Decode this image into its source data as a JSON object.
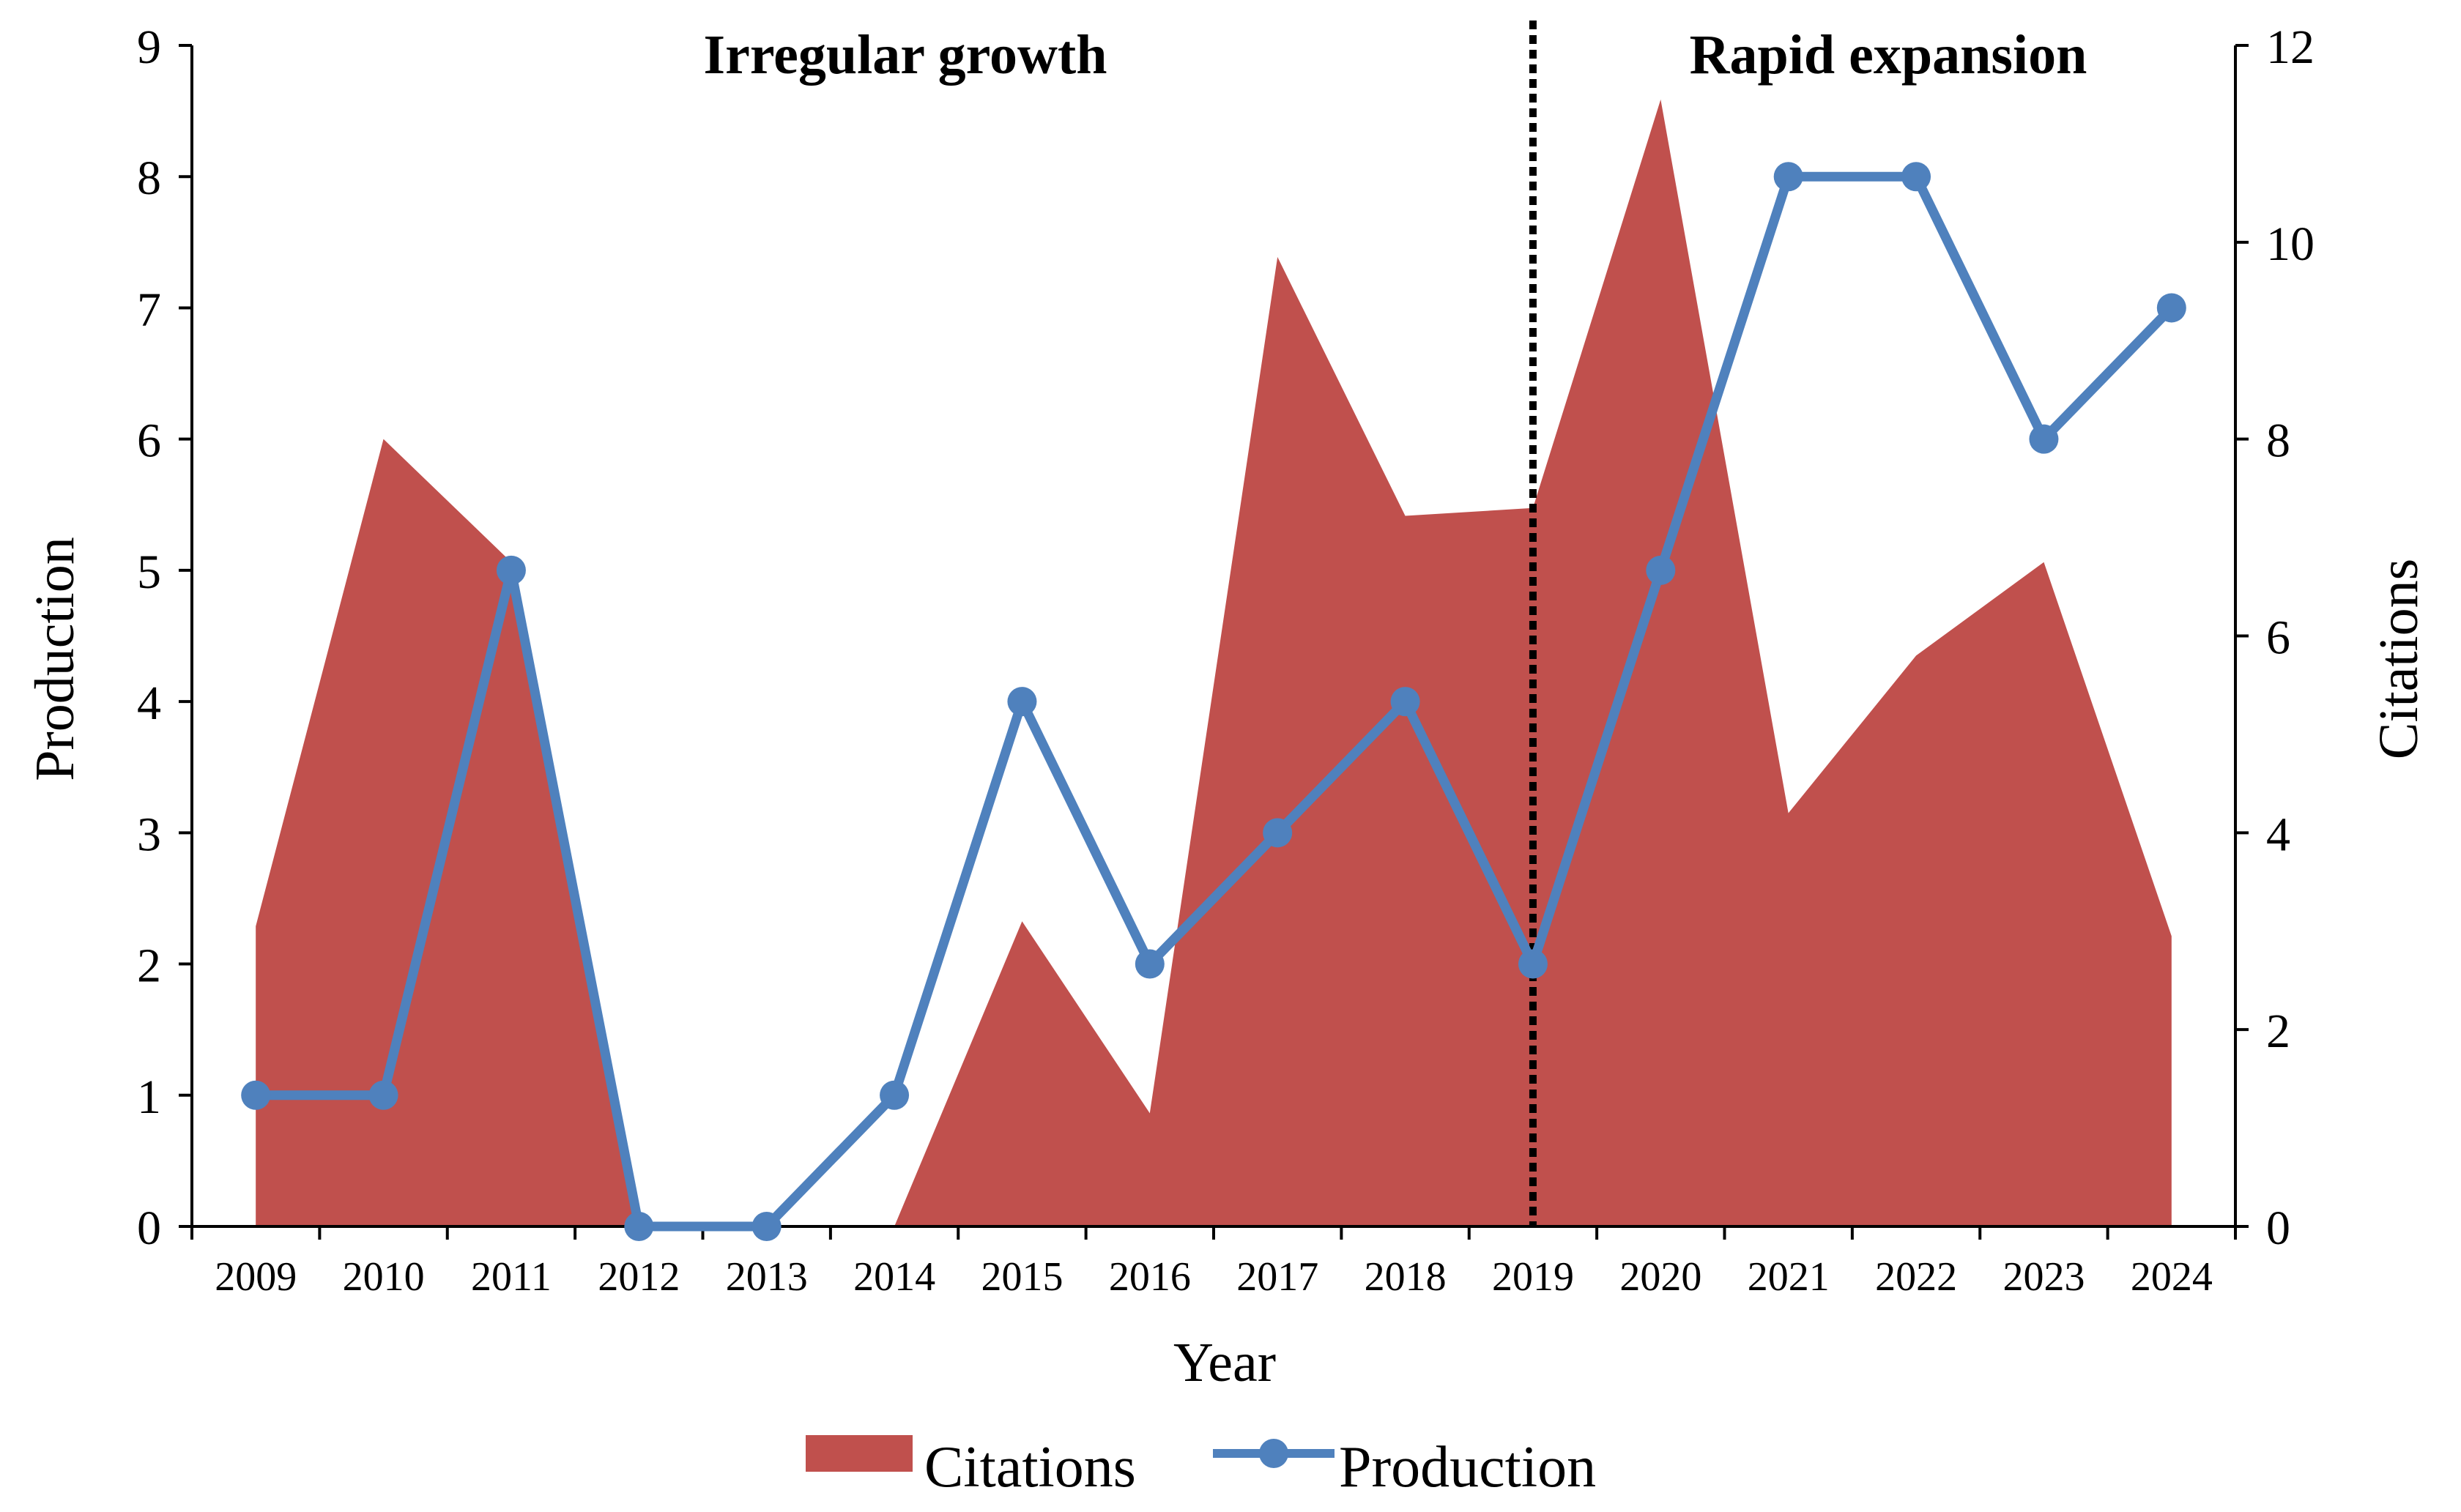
{
  "chart_data": {
    "type": "line+area",
    "categories": [
      "2009",
      "2010",
      "2011",
      "2012",
      "2013",
      "2014",
      "2015",
      "2016",
      "2017",
      "2018",
      "2019",
      "2020",
      "2021",
      "2022",
      "2023",
      "2024"
    ],
    "series": [
      {
        "name": "Citations",
        "kind": "area",
        "axis": "right",
        "color": "#c0504d",
        "values": [
          3.05,
          8.0,
          6.75,
          0,
          0,
          0,
          3.1,
          1.15,
          9.85,
          7.22,
          7.3,
          11.45,
          4.2,
          5.8,
          6.75,
          2.95
        ]
      },
      {
        "name": "Production",
        "kind": "line",
        "axis": "left",
        "color": "#4f81bd",
        "values": [
          1,
          1,
          5,
          0,
          0,
          1,
          4,
          2,
          3,
          4,
          2,
          5,
          8,
          8,
          6,
          7
        ]
      }
    ],
    "xlabel": "Year",
    "ylabel_left": "Production",
    "ylabel_right": "Citations",
    "ylim_left": [
      0,
      9
    ],
    "ylim_right": [
      0,
      12
    ],
    "yticks_left": [
      "0",
      "1",
      "2",
      "3",
      "4",
      "5",
      "6",
      "7",
      "8",
      "9"
    ],
    "yticks_right": [
      "0",
      "2",
      "4",
      "6",
      "8",
      "10",
      "12"
    ],
    "divider_year": "2019",
    "phases": [
      {
        "label": "Irregular growth"
      },
      {
        "label": "Rapid expansion"
      }
    ],
    "legend": [
      {
        "label": "Citations"
      },
      {
        "label": "Production"
      }
    ],
    "legend_position": "bottom",
    "grid": false
  }
}
